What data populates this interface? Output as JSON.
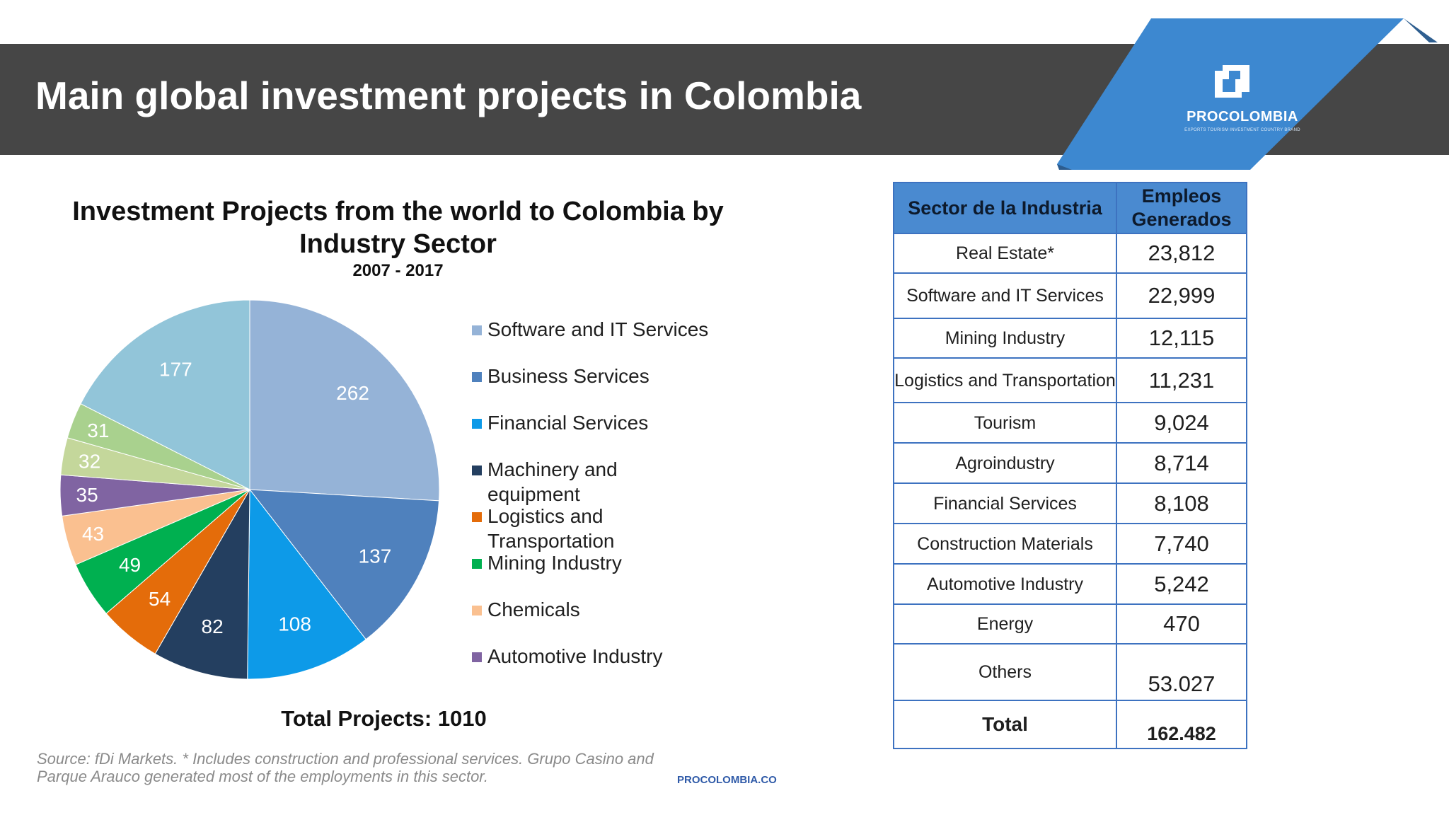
{
  "header": {
    "title": "Main global investment projects in Colombia",
    "brand": "PROCOLOMBIA",
    "brand_tagline": "EXPORTS TOURISM INVESTMENT COUNTRY BRAND",
    "banner_color": "#464646",
    "logo_color": "#3d88d0"
  },
  "chart_data": {
    "type": "pie",
    "title": "Investment Projects from the world to Colombia by Industry Sector",
    "subtitle": "2007 - 2017",
    "legend_position": "right",
    "legend": [
      {
        "label": "Software and IT Services",
        "color": "#95b3d7"
      },
      {
        "label": "Business Services",
        "color": "#4f81bd"
      },
      {
        "label": "Financial Services",
        "color": "#0d9ae8"
      },
      {
        "label": "Machinery and equipment",
        "color": "#243f60"
      },
      {
        "label": "Logistics and Transportation",
        "color": "#e46c0a"
      },
      {
        "label": "Mining Industry",
        "color": "#00b050"
      },
      {
        "label": "Chemicals",
        "color": "#fac090"
      },
      {
        "label": "Automotive Industry",
        "color": "#8064a2"
      }
    ],
    "slices": [
      {
        "value": 262,
        "color": "#95b3d7",
        "label_color": "#ffffff"
      },
      {
        "value": 137,
        "color": "#4f81bd",
        "label_color": "#ffffff"
      },
      {
        "value": 108,
        "color": "#0d9ae8",
        "label_color": "#ffffff"
      },
      {
        "value": 82,
        "color": "#243f60",
        "label_color": "#ffffff"
      },
      {
        "value": 54,
        "color": "#e46c0a",
        "label_color": "#ffffff"
      },
      {
        "value": 49,
        "color": "#00b050",
        "label_color": "#ffffff"
      },
      {
        "value": 43,
        "color": "#fac090",
        "label_color": "#ffffff"
      },
      {
        "value": 35,
        "color": "#8064a2",
        "label_color": "#ffffff"
      },
      {
        "value": 32,
        "color": "#c4d79b",
        "label_color": "#ffffff"
      },
      {
        "value": 31,
        "color": "#a9d18e",
        "label_color": "#ffffff"
      },
      {
        "value": 177,
        "color": "#92c5d9",
        "label_color": "#ffffff"
      }
    ],
    "total_label": "Total Projects: 1010"
  },
  "table": {
    "headers": [
      "Sector de la Industria",
      "Empleos Generados"
    ],
    "rows": [
      {
        "sector": "Real Estate*",
        "jobs": "23,812"
      },
      {
        "sector": "Software and IT Services",
        "jobs": "22,999"
      },
      {
        "sector": "Mining Industry",
        "jobs": "12,115"
      },
      {
        "sector": "Logistics and Transportation",
        "jobs": "11,231"
      },
      {
        "sector": "Tourism",
        "jobs": "9,024"
      },
      {
        "sector": "Agroindustry",
        "jobs": "8,714"
      },
      {
        "sector": "Financial Services",
        "jobs": "8,108"
      },
      {
        "sector": "Construction Materials",
        "jobs": "7,740"
      },
      {
        "sector": "Automotive Industry",
        "jobs": "5,242"
      },
      {
        "sector": "Energy",
        "jobs": "470"
      },
      {
        "sector": "Others",
        "jobs": "53.027"
      }
    ],
    "total": {
      "sector": "Total",
      "jobs": "162.482"
    },
    "header_color": "#4a8ad0",
    "border_color": "#3d72c0"
  },
  "footer": {
    "source": "Source: fDi Markets. * Includes construction and professional services. Grupo Casino and Parque Arauco generated most of the employments in this sector.",
    "link": "PROCOLOMBIA.CO"
  }
}
